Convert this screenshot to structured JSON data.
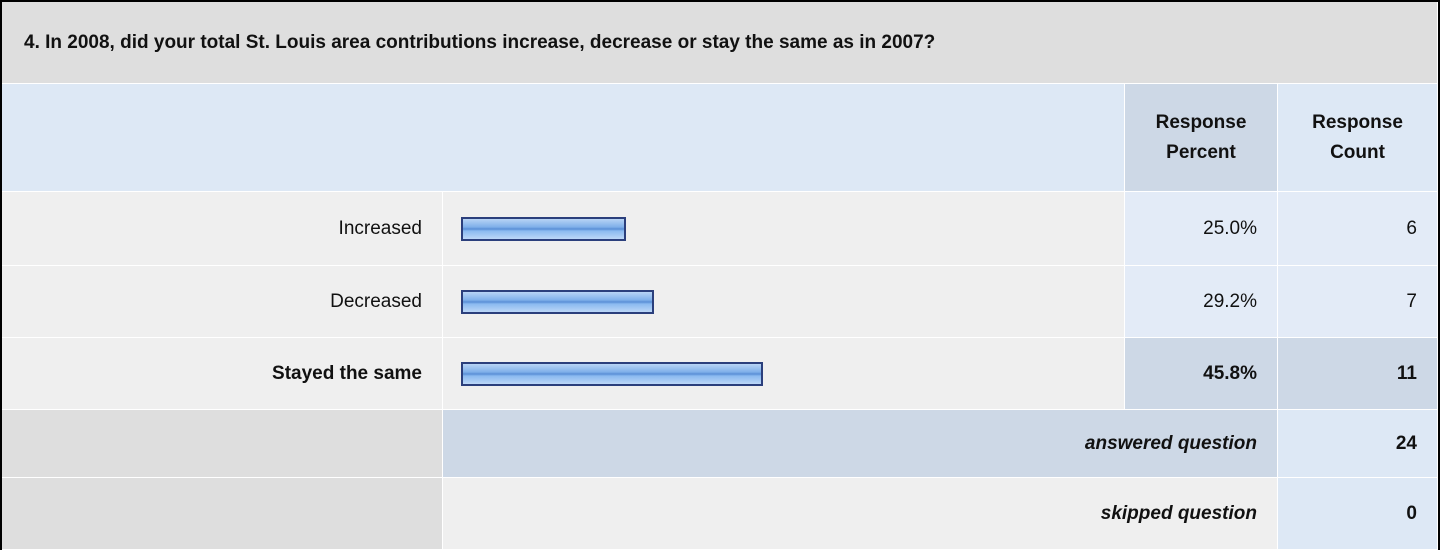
{
  "question": "4. In 2008, did your total St. Louis area contributions increase, decrease or stay the same as in 2007?",
  "headers": {
    "percent": "Response Percent",
    "count": "Response Count"
  },
  "rows": [
    {
      "label": "Increased",
      "percent": 25.0,
      "percent_label": "25.0%",
      "count": 6
    },
    {
      "label": "Decreased",
      "percent": 29.2,
      "percent_label": "29.2%",
      "count": 7
    },
    {
      "label": "Stayed the same",
      "percent": 45.8,
      "percent_label": "45.8%",
      "count": 11
    }
  ],
  "answered": {
    "label": "answered question",
    "count": 24
  },
  "skipped": {
    "label": "skipped question",
    "count": 0
  }
}
